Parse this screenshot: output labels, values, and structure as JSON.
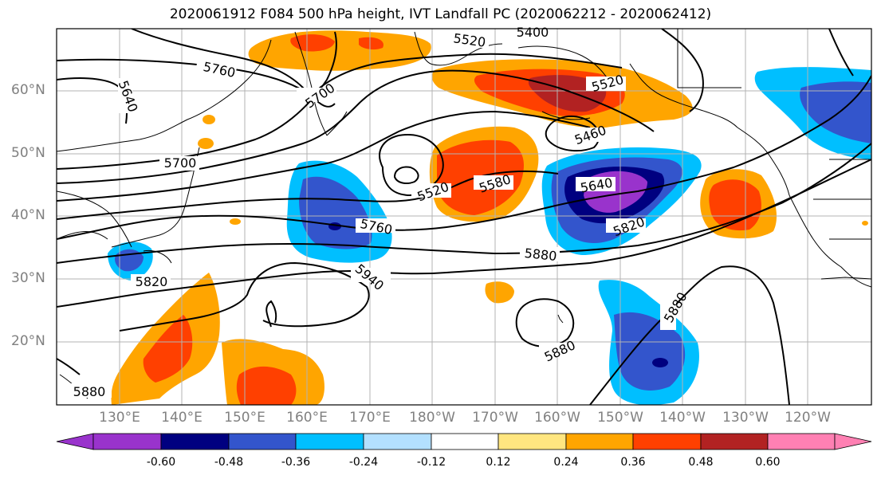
{
  "title": "2020061912 F084 500 hPa height, IVT Landfall PC (2020062212 - 2020062412)",
  "lat_labels": [
    "60°N",
    "50°N",
    "40°N",
    "30°N",
    "20°N"
  ],
  "lon_labels": [
    "130°E",
    "140°E",
    "150°E",
    "160°E",
    "170°E",
    "180°W",
    "170°W",
    "160°W",
    "150°W",
    "140°W",
    "130°W",
    "120°W"
  ],
  "contour_labels": [
    "5760",
    "5640",
    "5700",
    "5520",
    "5400",
    "5520",
    "5460",
    "5700",
    "5520",
    "5580",
    "5640",
    "5760",
    "5820",
    "5880",
    "5940",
    "5820",
    "5880",
    "5880",
    "5880"
  ],
  "colorbar": {
    "colors": [
      "#9933cc",
      "#000080",
      "#3355cc",
      "#00bfff",
      "#b3e0ff",
      "#ffffff",
      "#ffe680",
      "#ffa500",
      "#ff4000",
      "#b22222",
      "#ff80b3"
    ],
    "tick_labels": [
      "-0.60",
      "-0.48",
      "-0.36",
      "-0.24",
      "-0.12",
      "0.12",
      "0.24",
      "0.36",
      "0.48",
      "0.60"
    ]
  }
}
